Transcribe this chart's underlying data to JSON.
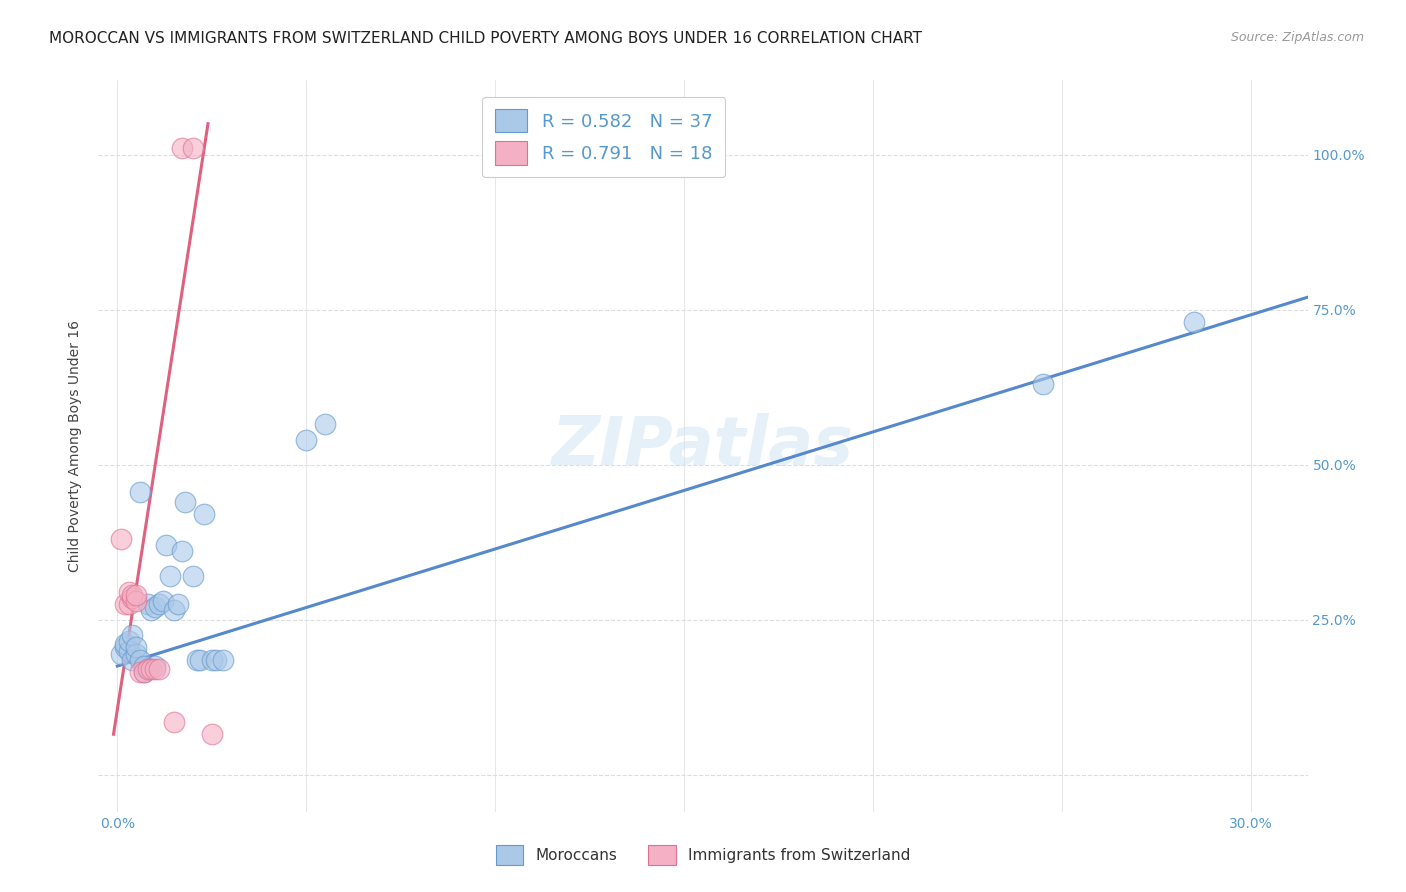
{
  "title": "MOROCCAN VS IMMIGRANTS FROM SWITZERLAND CHILD POVERTY AMONG BOYS UNDER 16 CORRELATION CHART",
  "source": "Source: ZipAtlas.com",
  "ylabel": "Child Poverty Among Boys Under 16",
  "x_ticks": [
    0.0,
    0.05,
    0.1,
    0.15,
    0.2,
    0.25,
    0.3
  ],
  "x_tick_labels": [
    "0.0%",
    "",
    "",
    "",
    "",
    "",
    "30.0%"
  ],
  "y_tick_positions": [
    0.0,
    0.25,
    0.5,
    0.75,
    1.0
  ],
  "y_tick_labels": [
    "",
    "25.0%",
    "50.0%",
    "75.0%",
    "100.0%"
  ],
  "xlim": [
    -0.005,
    0.315
  ],
  "ylim": [
    -0.06,
    1.12
  ],
  "blue_color": "#aac8e8",
  "pink_color": "#f4b0c4",
  "blue_edge_color": "#6699cc",
  "pink_edge_color": "#e07090",
  "blue_line_color": "#5588cc",
  "pink_line_color": "#e06080",
  "watermark": "ZIPatlas",
  "blue_scatter": [
    [
      0.001,
      0.195
    ],
    [
      0.002,
      0.205
    ],
    [
      0.002,
      0.21
    ],
    [
      0.003,
      0.2
    ],
    [
      0.003,
      0.215
    ],
    [
      0.004,
      0.185
    ],
    [
      0.004,
      0.225
    ],
    [
      0.005,
      0.195
    ],
    [
      0.005,
      0.205
    ],
    [
      0.006,
      0.185
    ],
    [
      0.006,
      0.455
    ],
    [
      0.007,
      0.165
    ],
    [
      0.007,
      0.175
    ],
    [
      0.008,
      0.17
    ],
    [
      0.008,
      0.275
    ],
    [
      0.009,
      0.265
    ],
    [
      0.01,
      0.175
    ],
    [
      0.01,
      0.27
    ],
    [
      0.011,
      0.275
    ],
    [
      0.012,
      0.28
    ],
    [
      0.013,
      0.37
    ],
    [
      0.014,
      0.32
    ],
    [
      0.015,
      0.265
    ],
    [
      0.016,
      0.275
    ],
    [
      0.017,
      0.36
    ],
    [
      0.018,
      0.44
    ],
    [
      0.02,
      0.32
    ],
    [
      0.021,
      0.185
    ],
    [
      0.022,
      0.185
    ],
    [
      0.023,
      0.42
    ],
    [
      0.025,
      0.185
    ],
    [
      0.026,
      0.185
    ],
    [
      0.028,
      0.185
    ],
    [
      0.05,
      0.54
    ],
    [
      0.055,
      0.565
    ],
    [
      0.245,
      0.63
    ],
    [
      0.285,
      0.73
    ]
  ],
  "pink_scatter": [
    [
      0.001,
      0.38
    ],
    [
      0.002,
      0.275
    ],
    [
      0.003,
      0.275
    ],
    [
      0.003,
      0.295
    ],
    [
      0.004,
      0.285
    ],
    [
      0.004,
      0.29
    ],
    [
      0.005,
      0.28
    ],
    [
      0.005,
      0.29
    ],
    [
      0.006,
      0.165
    ],
    [
      0.007,
      0.165
    ],
    [
      0.008,
      0.17
    ],
    [
      0.009,
      0.17
    ],
    [
      0.01,
      0.17
    ],
    [
      0.011,
      0.17
    ],
    [
      0.015,
      0.085
    ],
    [
      0.017,
      1.01
    ],
    [
      0.02,
      1.01
    ],
    [
      0.025,
      0.065
    ]
  ],
  "blue_line_x": [
    0.0,
    0.315
  ],
  "blue_line_y": [
    0.175,
    0.77
  ],
  "pink_line_x": [
    -0.001,
    0.024
  ],
  "pink_line_y": [
    0.065,
    1.05
  ],
  "title_fontsize": 11,
  "axis_label_fontsize": 10,
  "tick_fontsize": 10,
  "legend_fontsize": 13,
  "source_fontsize": 9,
  "watermark_fontsize": 48,
  "grid_color": "#dddddd",
  "background_color": "#ffffff",
  "right_axis_color": "#5599cc",
  "legend_label_1": "R = 0.582   N = 37",
  "legend_label_2": "R = 0.791   N = 18"
}
